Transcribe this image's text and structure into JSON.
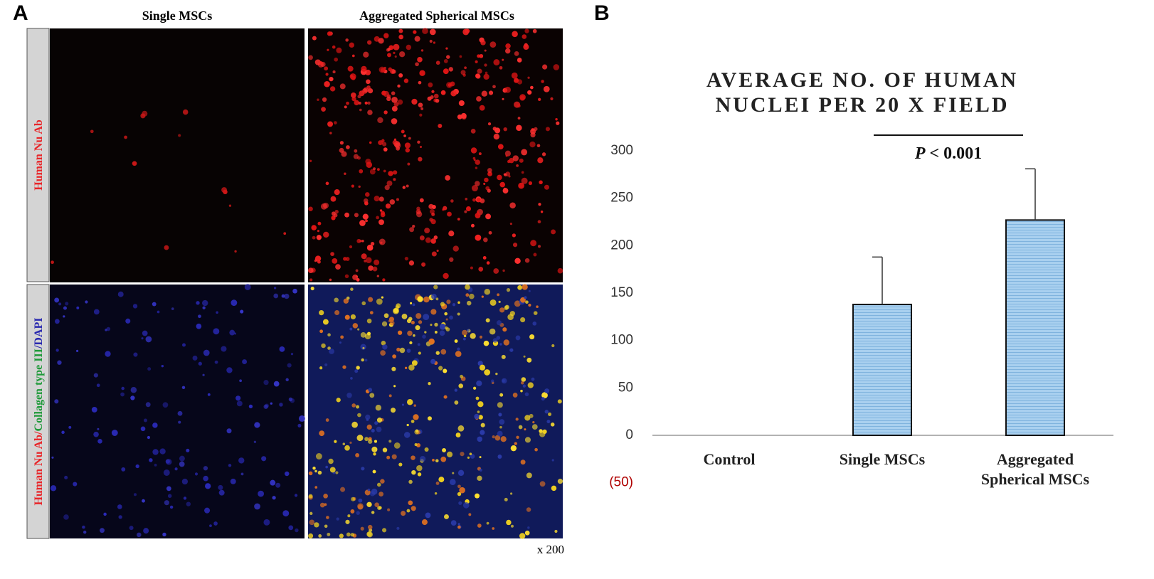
{
  "panel_a": {
    "letter": "A",
    "columns": [
      "Single MSCs",
      "Aggregated Spherical MSCs"
    ],
    "rows": [
      [
        {
          "text": "Human Nu Ab",
          "color": "#e8262a"
        }
      ],
      [
        {
          "text": "Human Nu Ab",
          "color": "#e8262a"
        },
        {
          "text": "/",
          "color": "#e8262a"
        },
        {
          "text": "Collagen type III",
          "color": "#1f9a3a"
        },
        {
          "text": "/",
          "color": "#2a2ab0"
        },
        {
          "text": "DAPI",
          "color": "#2a2ab0"
        }
      ]
    ],
    "magnification": "x 200"
  },
  "chart_data": {
    "type": "bar",
    "letter": "B",
    "title": [
      "AVERAGE NO. OF HUMAN",
      "NUCLEI PER 20 X FIELD"
    ],
    "categories": [
      "Control",
      "Single MSCs",
      "Aggregated Spherical MSCs"
    ],
    "values": [
      0,
      138,
      227
    ],
    "errors": [
      null,
      50,
      54
    ],
    "color": "#a9d0ef",
    "ylim": [
      -50,
      300
    ],
    "yticks": [
      {
        "value": -50,
        "label": "(50)"
      },
      0,
      50,
      100,
      150,
      200,
      250,
      300
    ],
    "negative_tick_color": "#b00000",
    "significance": {
      "symbol": "P",
      "text": "< 0.001"
    }
  }
}
